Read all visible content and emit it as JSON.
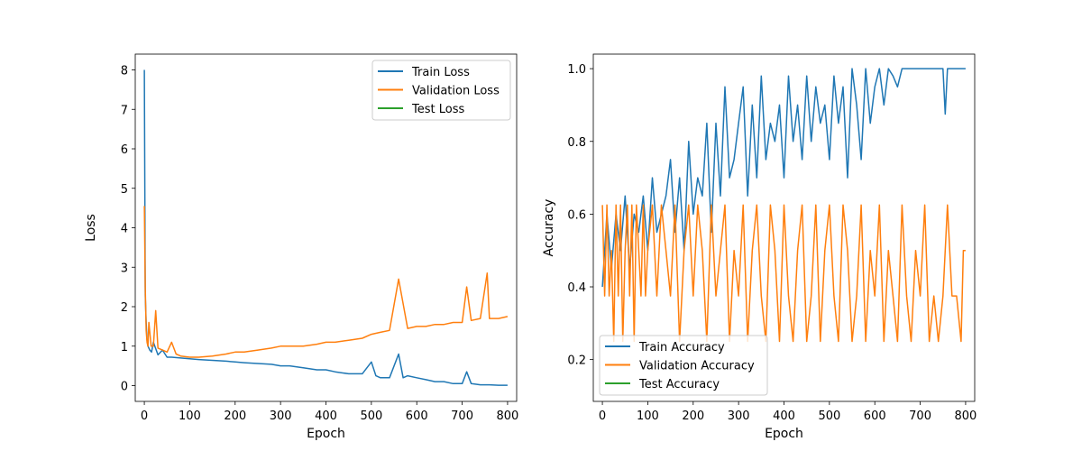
{
  "chart_data": [
    {
      "type": "line",
      "xlabel": "Epoch",
      "ylabel": "Loss",
      "xlim": [
        -20,
        820
      ],
      "ylim": [
        -0.4,
        8.4
      ],
      "xticks": [
        0,
        100,
        200,
        300,
        400,
        500,
        600,
        700,
        800
      ],
      "yticks": [
        0,
        1,
        2,
        3,
        4,
        5,
        6,
        7,
        8
      ],
      "legend_position": "top-right",
      "series": [
        {
          "name": "Train Loss",
          "color": "#1f77b4",
          "x": [
            0,
            2,
            4,
            6,
            8,
            12,
            16,
            20,
            30,
            40,
            50,
            60,
            80,
            100,
            120,
            150,
            180,
            200,
            220,
            250,
            280,
            300,
            320,
            350,
            380,
            400,
            420,
            450,
            480,
            500,
            510,
            520,
            540,
            560,
            570,
            580,
            600,
            620,
            640,
            660,
            680,
            700,
            710,
            720,
            740,
            760,
            780,
            800
          ],
          "y": [
            8.0,
            2.3,
            1.6,
            1.15,
            1.0,
            0.9,
            0.85,
            1.1,
            0.78,
            0.9,
            0.72,
            0.72,
            0.7,
            0.68,
            0.66,
            0.64,
            0.62,
            0.6,
            0.58,
            0.56,
            0.54,
            0.5,
            0.5,
            0.45,
            0.4,
            0.4,
            0.35,
            0.3,
            0.3,
            0.6,
            0.25,
            0.2,
            0.2,
            0.8,
            0.2,
            0.25,
            0.2,
            0.15,
            0.1,
            0.1,
            0.05,
            0.05,
            0.35,
            0.05,
            0.02,
            0.02,
            0.01,
            0.01
          ]
        },
        {
          "name": "Validation Loss",
          "color": "#ff7f0e",
          "x": [
            0,
            2,
            4,
            6,
            8,
            10,
            15,
            20,
            25,
            30,
            40,
            50,
            60,
            70,
            80,
            100,
            120,
            150,
            180,
            200,
            220,
            250,
            280,
            300,
            320,
            350,
            380,
            400,
            420,
            450,
            480,
            500,
            520,
            540,
            560,
            580,
            600,
            620,
            640,
            660,
            680,
            700,
            710,
            720,
            740,
            755,
            760,
            780,
            800
          ],
          "y": [
            4.55,
            2.5,
            1.4,
            1.1,
            1.0,
            1.6,
            1.0,
            1.0,
            1.9,
            0.95,
            0.9,
            0.85,
            1.1,
            0.8,
            0.75,
            0.72,
            0.72,
            0.75,
            0.8,
            0.85,
            0.85,
            0.9,
            0.95,
            1.0,
            1.0,
            1.0,
            1.05,
            1.1,
            1.1,
            1.15,
            1.2,
            1.3,
            1.35,
            1.4,
            2.7,
            1.45,
            1.5,
            1.5,
            1.55,
            1.55,
            1.6,
            1.6,
            2.5,
            1.65,
            1.7,
            2.85,
            1.7,
            1.7,
            1.75
          ]
        },
        {
          "name": "Test Loss",
          "color": "#2ca02c",
          "x": [],
          "y": []
        }
      ]
    },
    {
      "type": "line",
      "xlabel": "Epoch",
      "ylabel": "Accuracy",
      "xlim": [
        -20,
        820
      ],
      "ylim": [
        0.085,
        1.04
      ],
      "xticks": [
        0,
        100,
        200,
        300,
        400,
        500,
        600,
        700,
        800
      ],
      "yticks": [
        0.2,
        0.4,
        0.6,
        0.8,
        1.0
      ],
      "legend_position": "bottom-left",
      "series": [
        {
          "name": "Train Accuracy",
          "color": "#1f77b4",
          "x": [
            0,
            10,
            20,
            30,
            40,
            50,
            60,
            70,
            80,
            90,
            100,
            110,
            120,
            130,
            140,
            150,
            160,
            170,
            180,
            190,
            200,
            210,
            220,
            230,
            240,
            250,
            260,
            270,
            280,
            290,
            300,
            310,
            320,
            330,
            340,
            350,
            360,
            370,
            380,
            390,
            400,
            410,
            420,
            430,
            440,
            450,
            460,
            470,
            480,
            490,
            500,
            510,
            520,
            530,
            540,
            550,
            560,
            570,
            580,
            590,
            600,
            610,
            620,
            630,
            640,
            650,
            660,
            680,
            700,
            720,
            740,
            750,
            755,
            760,
            780,
            800
          ],
          "y": [
            0.4,
            0.6,
            0.45,
            0.6,
            0.5,
            0.65,
            0.45,
            0.6,
            0.55,
            0.65,
            0.5,
            0.7,
            0.55,
            0.6,
            0.65,
            0.75,
            0.55,
            0.7,
            0.5,
            0.8,
            0.6,
            0.7,
            0.65,
            0.85,
            0.55,
            0.85,
            0.65,
            0.95,
            0.7,
            0.75,
            0.85,
            0.95,
            0.65,
            0.9,
            0.7,
            0.98,
            0.75,
            0.85,
            0.8,
            0.9,
            0.7,
            0.98,
            0.8,
            0.9,
            0.75,
            0.98,
            0.8,
            0.95,
            0.85,
            0.9,
            0.75,
            0.98,
            0.85,
            0.95,
            0.7,
            1.0,
            0.9,
            0.75,
            1.0,
            0.85,
            0.95,
            1.0,
            0.9,
            1.0,
            0.98,
            0.95,
            1.0,
            1.0,
            1.0,
            1.0,
            1.0,
            1.0,
            0.875,
            1.0,
            1.0,
            1.0
          ]
        },
        {
          "name": "Validation Accuracy",
          "color": "#ff7f0e",
          "x": [
            0,
            5,
            10,
            15,
            20,
            25,
            30,
            35,
            40,
            45,
            50,
            55,
            60,
            65,
            70,
            75,
            80,
            85,
            90,
            95,
            100,
            110,
            120,
            130,
            140,
            150,
            160,
            170,
            180,
            190,
            200,
            210,
            220,
            230,
            240,
            250,
            260,
            270,
            280,
            290,
            300,
            310,
            320,
            330,
            340,
            350,
            360,
            370,
            380,
            390,
            400,
            410,
            420,
            430,
            440,
            450,
            460,
            470,
            480,
            490,
            500,
            510,
            520,
            530,
            540,
            550,
            560,
            570,
            580,
            590,
            600,
            610,
            620,
            630,
            640,
            650,
            660,
            670,
            680,
            690,
            700,
            710,
            720,
            730,
            740,
            750,
            760,
            770,
            780,
            790,
            795,
            800
          ],
          "y": [
            0.625,
            0.375,
            0.625,
            0.375,
            0.5,
            0.25,
            0.625,
            0.375,
            0.625,
            0.25,
            0.5,
            0.625,
            0.375,
            0.625,
            0.25,
            0.625,
            0.5,
            0.375,
            0.625,
            0.375,
            0.5,
            0.625,
            0.375,
            0.625,
            0.5,
            0.375,
            0.625,
            0.25,
            0.5,
            0.625,
            0.375,
            0.625,
            0.5,
            0.25,
            0.625,
            0.375,
            0.5,
            0.625,
            0.25,
            0.5,
            0.375,
            0.625,
            0.25,
            0.5,
            0.625,
            0.375,
            0.25,
            0.625,
            0.5,
            0.25,
            0.625,
            0.375,
            0.25,
            0.5,
            0.625,
            0.25,
            0.375,
            0.625,
            0.25,
            0.5,
            0.625,
            0.375,
            0.25,
            0.625,
            0.5,
            0.25,
            0.375,
            0.625,
            0.25,
            0.5,
            0.375,
            0.625,
            0.25,
            0.5,
            0.375,
            0.25,
            0.625,
            0.375,
            0.25,
            0.5,
            0.375,
            0.625,
            0.25,
            0.375,
            0.25,
            0.375,
            0.625,
            0.375,
            0.375,
            0.25,
            0.5,
            0.5
          ]
        },
        {
          "name": "Test Accuracy",
          "color": "#2ca02c",
          "x": [],
          "y": []
        }
      ]
    }
  ]
}
